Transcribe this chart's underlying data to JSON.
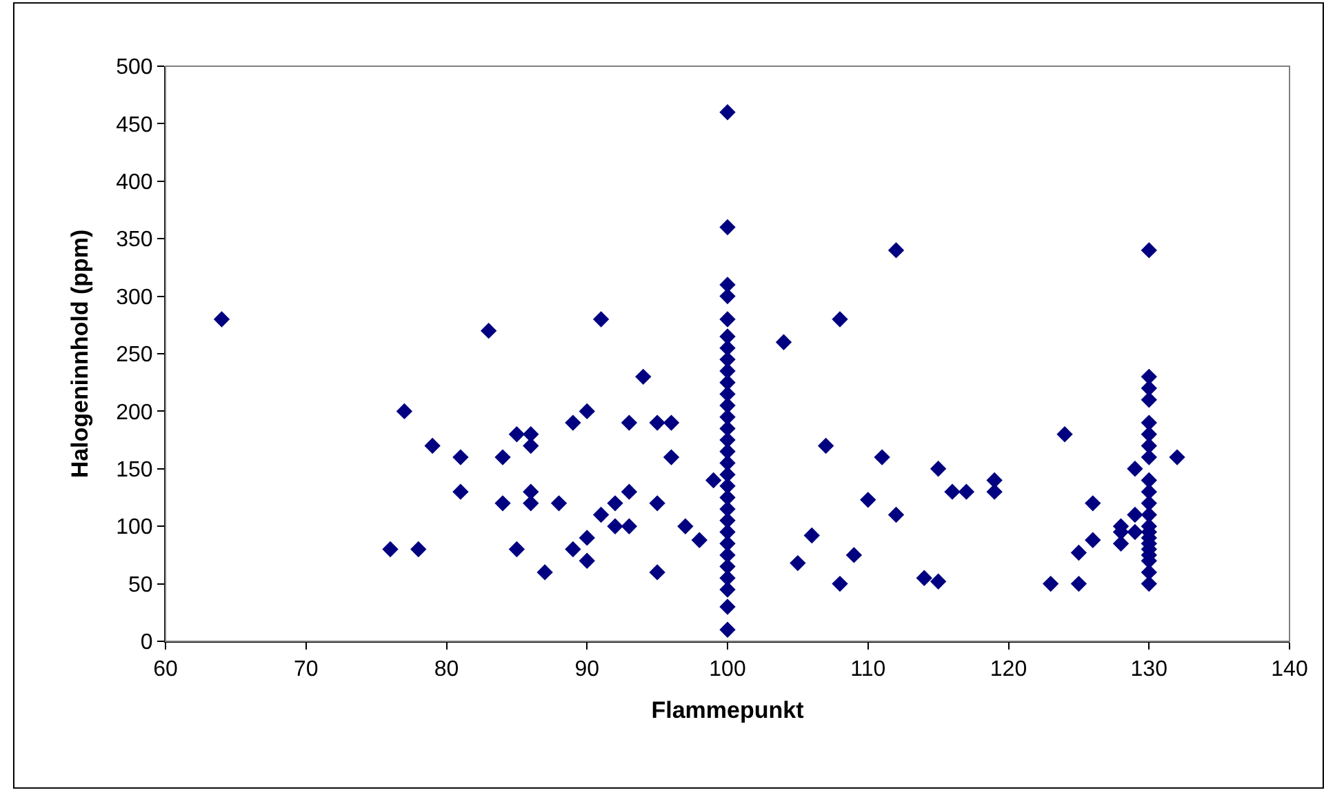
{
  "chart_data": {
    "type": "scatter",
    "xlabel": "Flammepunkt",
    "ylabel": "Halogeninnhold (ppm)",
    "xlim": [
      60,
      140
    ],
    "xticks": [
      60,
      70,
      80,
      90,
      100,
      110,
      120,
      130,
      140
    ],
    "ylim": [
      0,
      500
    ],
    "yticks": [
      0,
      50,
      100,
      150,
      200,
      250,
      300,
      350,
      400,
      450,
      500
    ],
    "grid": false,
    "marker": "diamond",
    "series": [
      {
        "color": "#000080",
        "x": [
          64,
          76,
          77,
          78,
          79,
          81,
          81,
          83,
          84,
          84,
          85,
          85,
          86,
          86,
          86,
          86,
          87,
          88,
          89,
          89,
          90,
          90,
          90,
          91,
          91,
          92,
          92,
          93,
          93,
          93,
          94,
          95,
          95,
          95,
          96,
          96,
          97,
          98,
          99,
          100,
          100,
          100,
          100,
          100,
          100,
          100,
          100,
          100,
          100,
          100,
          100,
          100,
          100,
          100,
          100,
          100,
          100,
          100,
          100,
          100,
          100,
          100,
          100,
          100,
          100,
          100,
          100,
          100,
          100,
          104,
          105,
          106,
          107,
          108,
          108,
          109,
          110,
          111,
          112,
          112,
          114,
          115,
          115,
          116,
          117,
          119,
          119,
          123,
          124,
          125,
          125,
          126,
          126,
          128,
          128,
          128,
          129,
          129,
          129,
          130,
          130,
          130,
          130,
          130,
          130,
          130,
          130,
          130,
          130,
          130,
          130,
          130,
          130,
          130,
          130,
          130,
          130,
          130,
          130,
          130,
          132
        ],
        "values": [
          280,
          80,
          200,
          80,
          170,
          160,
          130,
          270,
          160,
          120,
          180,
          80,
          180,
          170,
          130,
          120,
          60,
          120,
          190,
          80,
          200,
          90,
          70,
          280,
          110,
          120,
          100,
          190,
          130,
          100,
          230,
          190,
          120,
          60,
          190,
          160,
          100,
          88,
          140,
          10,
          30,
          45,
          55,
          65,
          75,
          85,
          95,
          105,
          115,
          125,
          135,
          145,
          155,
          165,
          175,
          185,
          195,
          205,
          215,
          225,
          235,
          245,
          255,
          265,
          280,
          300,
          310,
          360,
          460,
          260,
          68,
          92,
          170,
          280,
          50,
          75,
          123,
          160,
          340,
          110,
          55,
          150,
          52,
          130,
          130,
          140,
          130,
          50,
          180,
          77,
          50,
          120,
          88,
          100,
          95,
          85,
          110,
          150,
          95,
          340,
          230,
          220,
          210,
          190,
          180,
          170,
          160,
          140,
          130,
          120,
          110,
          100,
          95,
          90,
          85,
          80,
          75,
          70,
          60,
          50,
          160
        ]
      }
    ]
  }
}
